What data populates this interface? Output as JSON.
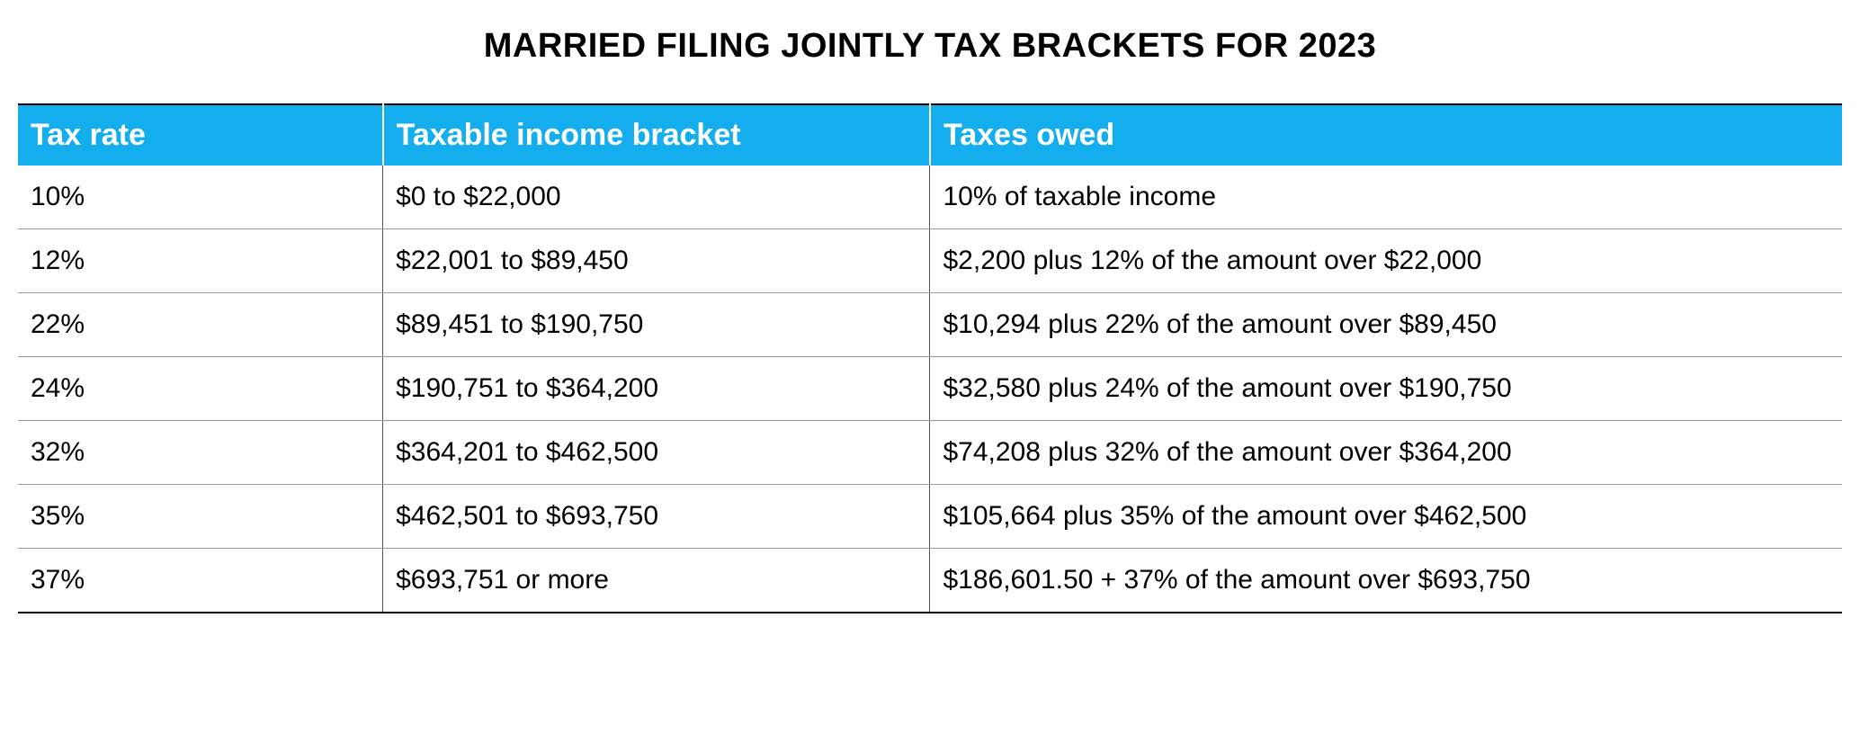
{
  "title": "MARRIED FILING JOINTLY TAX BRACKETS FOR 2023",
  "table": {
    "type": "table",
    "header_bg": "#14aeef",
    "header_fg": "#ffffff",
    "border_color_outer": "#000000",
    "border_color_inner": "#999999",
    "cell_bg": "#ffffff",
    "cell_fg": "#000000",
    "title_fontsize": 38,
    "header_fontsize": 34,
    "cell_fontsize": 30,
    "column_widths_pct": [
      20,
      30,
      50
    ],
    "columns": [
      "Tax rate",
      "Taxable income bracket",
      "Taxes owed"
    ],
    "rows": [
      [
        "10%",
        "$0 to $22,000",
        "10% of taxable income"
      ],
      [
        "12%",
        "$22,001 to $89,450",
        "$2,200 plus 12% of the amount over $22,000"
      ],
      [
        "22%",
        "$89,451 to $190,750",
        "$10,294 plus 22% of the amount over $89,450"
      ],
      [
        "24%",
        "$190,751 to $364,200",
        "$32,580 plus 24% of the amount over $190,750"
      ],
      [
        "32%",
        "$364,201 to $462,500",
        "$74,208 plus 32% of the amount over $364,200"
      ],
      [
        "35%",
        "$462,501 to $693,750",
        "$105,664 plus 35% of the amount over $462,500"
      ],
      [
        "37%",
        "$693,751 or more",
        "$186,601.50 + 37% of the amount over $693,750"
      ]
    ]
  }
}
